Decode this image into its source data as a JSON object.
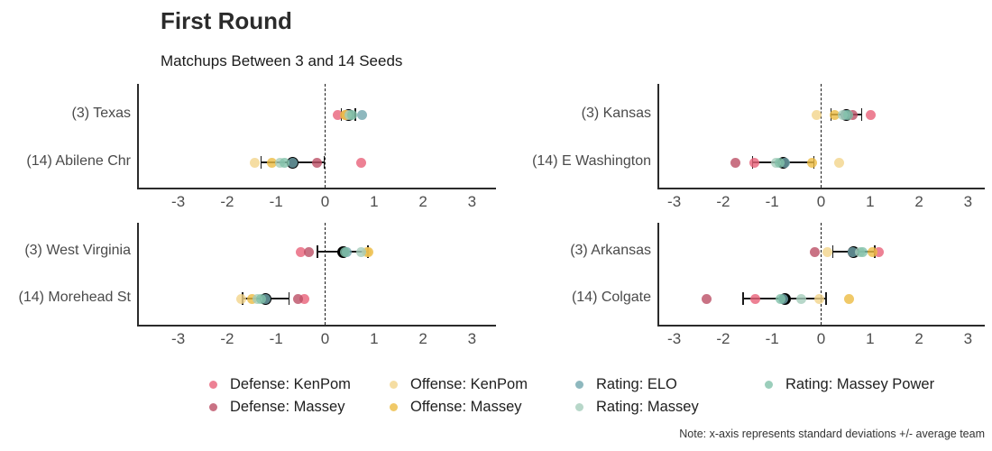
{
  "header": {
    "title": "First Round",
    "subtitle": "Matchups Between 3 and 14 Seeds"
  },
  "note": "Note: x-axis represents standard deviations +/- average team",
  "chart_data": {
    "type": "scatter",
    "title": "First Round",
    "subtitle": "Matchups Between 3 and 14 Seeds",
    "xlabel": "standard deviations +/- average team",
    "x_ticks": [
      -3,
      -2,
      -1,
      0,
      1,
      2,
      3
    ],
    "xlim": [
      -3.8,
      3.5
    ],
    "zero_reference_line": true,
    "legend_position": "bottom",
    "metrics": [
      {
        "key": "def_kenpom",
        "label": "Defense: KenPom",
        "color": "#e96179"
      },
      {
        "key": "def_massey",
        "label": "Defense: Massey",
        "color": "#bb4f65"
      },
      {
        "key": "off_kenpom",
        "label": "Offense: KenPom",
        "color": "#f2d58b"
      },
      {
        "key": "off_massey",
        "label": "Offense: Massey",
        "color": "#ecbb42"
      },
      {
        "key": "elo",
        "label": "Rating: ELO",
        "color": "#72a6ae"
      },
      {
        "key": "massey",
        "label": "Rating: Massey",
        "color": "#a5cdbc"
      },
      {
        "key": "massey_power",
        "label": "Rating: Massey Power",
        "color": "#82c2aa"
      }
    ],
    "legend_rows": [
      [
        "def_kenpom",
        "off_kenpom",
        "elo",
        "massey_power"
      ],
      [
        "def_massey",
        "off_massey",
        "massey"
      ]
    ],
    "mean_marker_color": "#000000",
    "panels": [
      {
        "position": "top-left",
        "rows": [
          {
            "team": "(3) Texas",
            "mean": 0.47,
            "lo": 0.33,
            "hi": 0.62,
            "points": {
              "def_kenpom": 0.26,
              "def_massey": 0.42,
              "off_kenpom": 0.45,
              "off_massey": 0.4,
              "elo": 0.76,
              "massey": 0.5,
              "massey_power": 0.55
            }
          },
          {
            "team": "(14) Abilene Chr",
            "mean": -0.66,
            "lo": -1.31,
            "hi": -0.02,
            "points": {
              "def_kenpom": 0.74,
              "def_massey": -0.17,
              "off_kenpom": -1.44,
              "off_massey": -1.09,
              "elo": -0.66,
              "massey": -0.92,
              "massey_power": -0.83
            }
          }
        ]
      },
      {
        "position": "top-right",
        "rows": [
          {
            "team": "(3) Kansas",
            "mean": 0.52,
            "lo": 0.2,
            "hi": 0.83,
            "points": {
              "def_kenpom": 1.01,
              "def_massey": 0.64,
              "off_kenpom": -0.1,
              "off_massey": 0.28,
              "elo": 0.5,
              "massey": 0.45,
              "massey_power": 0.55
            }
          },
          {
            "team": "(14) E Washington",
            "mean": -0.78,
            "lo": -1.4,
            "hi": -0.15,
            "points": {
              "def_kenpom": -1.36,
              "def_massey": -1.75,
              "off_kenpom": 0.37,
              "off_massey": -0.18,
              "elo": -0.73,
              "massey": -0.92,
              "massey_power": -0.85
            }
          }
        ]
      },
      {
        "position": "bottom-left",
        "rows": [
          {
            "team": "(3) West Virginia",
            "mean": 0.36,
            "lo": -0.16,
            "hi": 0.88,
            "points": {
              "def_kenpom": -0.49,
              "def_massey": -0.33,
              "off_kenpom": 0.85,
              "off_massey": 0.88,
              "elo": 0.45,
              "massey": 0.73,
              "massey_power": 0.4
            }
          },
          {
            "team": "(14) Morehead St",
            "mean": -1.22,
            "lo": -1.69,
            "hi": -0.74,
            "points": {
              "def_kenpom": -0.42,
              "def_massey": -0.56,
              "off_kenpom": -1.72,
              "off_massey": -1.5,
              "elo": -1.22,
              "massey": -1.38,
              "massey_power": -1.3
            }
          }
        ]
      },
      {
        "position": "bottom-right",
        "rows": [
          {
            "team": "(3) Arkansas",
            "mean": 0.67,
            "lo": 0.24,
            "hi": 1.1,
            "points": {
              "def_kenpom": 1.17,
              "def_massey": -0.12,
              "off_kenpom": 0.13,
              "off_massey": 1.05,
              "elo": 0.64,
              "massey": 0.8,
              "massey_power": 0.85
            }
          },
          {
            "team": "(14) Colgate",
            "mean": -0.74,
            "lo": -1.59,
            "hi": 0.1,
            "points": {
              "def_kenpom": -1.34,
              "def_massey": -2.33,
              "off_kenpom": -0.04,
              "off_massey": 0.58,
              "elo": -0.78,
              "massey": -0.4,
              "massey_power": -0.82
            }
          }
        ]
      }
    ]
  }
}
